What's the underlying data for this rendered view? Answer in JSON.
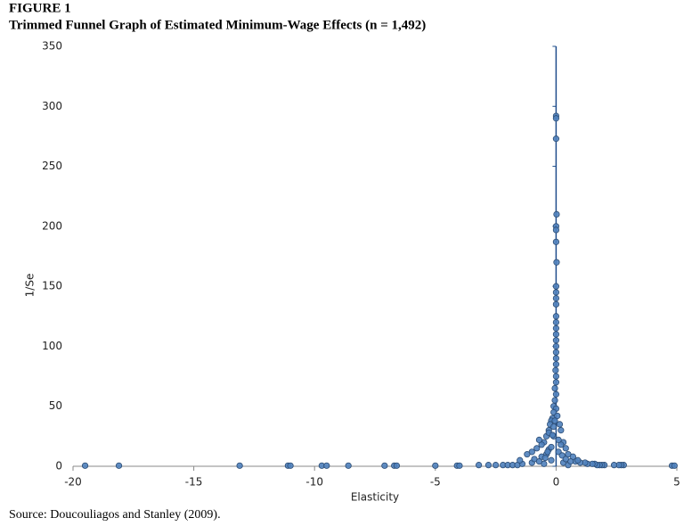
{
  "chart_data": {
    "type": "scatter",
    "title": "FIGURE 1",
    "subtitle": "Trimmed Funnel Graph of Estimated Minimum-Wage Effects (n = 1,492)",
    "source": "Source: Doucouliagos and Stanley (2009).",
    "x_label": "Elasticity",
    "y_label": "1/Se",
    "color": "#4f81bd",
    "xlim": [
      -20,
      5
    ],
    "xticks": [
      -20,
      -15,
      -10,
      -5,
      0,
      5
    ],
    "ylim": [
      0,
      350
    ],
    "yticks": [
      0,
      50,
      100,
      150,
      200,
      250,
      300,
      350
    ],
    "x": [
      -19.5,
      -18.1,
      -13.1,
      -11.1,
      -11.0,
      -9.7,
      -9.5,
      -8.6,
      -7.1,
      -6.7,
      -6.6,
      -5.0,
      -4.1,
      -4.0,
      -3.2,
      -2.8,
      -2.5,
      -2.2,
      -2.0,
      -1.8,
      -1.6,
      -1.4,
      4.8,
      4.9,
      2.8,
      2.7,
      2.6,
      2.4,
      2.0,
      1.9,
      1.8,
      1.7,
      1.6,
      1.5,
      1.3,
      1.2,
      1.0,
      0.8,
      0,
      0,
      0,
      0.02,
      0,
      0,
      0,
      0.02,
      0,
      0,
      0,
      0,
      0,
      0,
      0,
      0,
      0,
      0,
      0,
      0,
      0,
      -0.02,
      0,
      0,
      -0.05,
      0,
      -0.05,
      -0.1,
      0,
      -0.1,
      -0.15,
      -0.2,
      -0.25,
      -0.3,
      -0.4,
      -0.5,
      -0.6,
      -0.8,
      -1.0,
      -1.2,
      0.2,
      0.15,
      0.3,
      0.4,
      0.5,
      0.7,
      0.9,
      -0.7,
      -0.3,
      -0.1,
      -1.5,
      -1.0,
      -0.5,
      0.3,
      0.5,
      -0.2,
      0.1,
      -0.9,
      -0.6,
      -0.4,
      0.6,
      0.2,
      -0.1,
      -0.3,
      0.05,
      -0.05,
      0.1,
      -0.2,
      -0.35,
      -0.15,
      0.25,
      -0.45,
      -0.7,
      0.4
    ],
    "values": [
      0.5,
      0.5,
      0.5,
      0.5,
      0.5,
      0.5,
      0.5,
      0.5,
      0.5,
      0.5,
      0.5,
      0.5,
      0.5,
      0.5,
      1,
      1,
      1,
      1,
      1,
      1,
      1,
      2,
      0.5,
      0.5,
      1,
      1,
      1,
      1,
      1,
      1,
      1,
      1,
      2,
      2,
      2,
      3,
      3,
      4,
      292,
      290,
      273,
      210,
      200,
      197,
      187,
      170,
      150,
      145,
      140,
      135,
      125,
      120,
      115,
      110,
      105,
      100,
      95,
      90,
      85,
      80,
      75,
      70,
      65,
      60,
      55,
      50,
      48,
      45,
      40,
      38,
      35,
      30,
      25,
      20,
      18,
      15,
      12,
      10,
      30,
      35,
      20,
      15,
      10,
      8,
      5,
      22,
      28,
      25,
      5,
      3,
      2,
      3,
      1,
      5,
      12,
      6,
      8,
      10,
      4,
      18,
      33,
      14,
      42,
      38,
      22,
      16,
      12,
      26,
      9,
      7,
      4,
      6
    ]
  }
}
